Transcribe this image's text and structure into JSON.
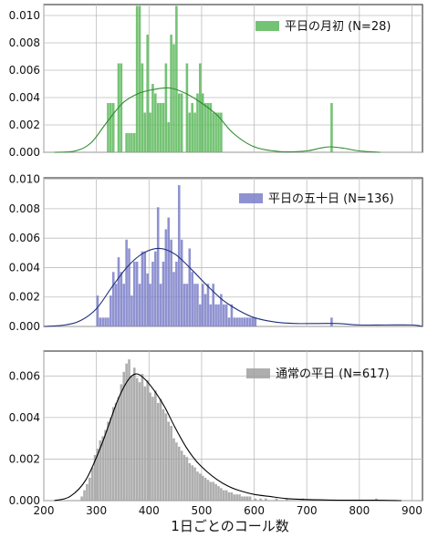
{
  "chart_data": [
    {
      "type": "histogram",
      "title": "",
      "legend": "平日の月初 (N=28)",
      "legend_position": "top-right",
      "color": "#5cb85c",
      "line_color": "#2e8b2e",
      "bin_width": 5,
      "xlim": [
        200,
        920
      ],
      "ylim": [
        0,
        0.0108
      ],
      "yticks": [
        "0.000",
        "0.002",
        "0.004",
        "0.006",
        "0.008",
        "0.010"
      ],
      "grid": true,
      "bars": [
        [
          320,
          0.0036
        ],
        [
          325,
          0.0036
        ],
        [
          330,
          0.0036
        ],
        [
          340,
          0.0065
        ],
        [
          345,
          0.0065
        ],
        [
          355,
          0.0014
        ],
        [
          360,
          0.0014
        ],
        [
          365,
          0.0014
        ],
        [
          370,
          0.0014
        ],
        [
          375,
          0.0107
        ],
        [
          380,
          0.0107
        ],
        [
          385,
          0.0065
        ],
        [
          390,
          0.0029
        ],
        [
          395,
          0.0086
        ],
        [
          400,
          0.0029
        ],
        [
          405,
          0.005
        ],
        [
          410,
          0.0043
        ],
        [
          415,
          0.0036
        ],
        [
          420,
          0.0036
        ],
        [
          425,
          0.0036
        ],
        [
          430,
          0.0065
        ],
        [
          435,
          0.0022
        ],
        [
          440,
          0.0086
        ],
        [
          445,
          0.0079
        ],
        [
          450,
          0.0107
        ],
        [
          455,
          0.0043
        ],
        [
          460,
          0.0043
        ],
        [
          470,
          0.0065
        ],
        [
          475,
          0.0029
        ],
        [
          480,
          0.0036
        ],
        [
          485,
          0.0029
        ],
        [
          490,
          0.0043
        ],
        [
          495,
          0.0065
        ],
        [
          500,
          0.0043
        ],
        [
          505,
          0.0036
        ],
        [
          510,
          0.0036
        ],
        [
          515,
          0.0036
        ],
        [
          520,
          0.0029
        ],
        [
          525,
          0.0029
        ],
        [
          530,
          0.0029
        ],
        [
          535,
          0.0029
        ],
        [
          745,
          0.0036
        ]
      ],
      "kde": [
        [
          220,
          0.0
        ],
        [
          260,
          0.0001
        ],
        [
          290,
          0.0007
        ],
        [
          320,
          0.0022
        ],
        [
          350,
          0.0036
        ],
        [
          380,
          0.0043
        ],
        [
          410,
          0.0046
        ],
        [
          440,
          0.0047
        ],
        [
          470,
          0.0043
        ],
        [
          500,
          0.0036
        ],
        [
          530,
          0.0027
        ],
        [
          560,
          0.0014
        ],
        [
          600,
          0.0004
        ],
        [
          650,
          5e-05
        ],
        [
          700,
          0.0001
        ],
        [
          725,
          0.0003
        ],
        [
          745,
          0.0004
        ],
        [
          770,
          0.0003
        ],
        [
          800,
          0.0001
        ],
        [
          840,
          0.0
        ]
      ]
    },
    {
      "type": "histogram",
      "title": "",
      "legend": "平日の五十日 (N=136)",
      "legend_position": "top-right",
      "color": "#7b7fc8",
      "line_color": "#1f2f7a",
      "bin_width": 5,
      "xlim": [
        200,
        920
      ],
      "ylim": [
        0,
        0.0101
      ],
      "yticks": [
        "0.000",
        "0.002",
        "0.004",
        "0.006",
        "0.008",
        "0.010"
      ],
      "grid": true,
      "bars": [
        [
          300,
          0.0021
        ],
        [
          305,
          0.0006
        ],
        [
          310,
          0.0006
        ],
        [
          315,
          0.0006
        ],
        [
          320,
          0.0006
        ],
        [
          325,
          0.0021
        ],
        [
          330,
          0.0037
        ],
        [
          335,
          0.0029
        ],
        [
          340,
          0.0047
        ],
        [
          345,
          0.0037
        ],
        [
          350,
          0.0029
        ],
        [
          355,
          0.0059
        ],
        [
          360,
          0.0053
        ],
        [
          365,
          0.0021
        ],
        [
          370,
          0.0044
        ],
        [
          375,
          0.0044
        ],
        [
          380,
          0.0029
        ],
        [
          385,
          0.0051
        ],
        [
          390,
          0.0051
        ],
        [
          395,
          0.0036
        ],
        [
          400,
          0.0029
        ],
        [
          405,
          0.0044
        ],
        [
          410,
          0.0051
        ],
        [
          415,
          0.0081
        ],
        [
          420,
          0.0029
        ],
        [
          425,
          0.0044
        ],
        [
          430,
          0.0066
        ],
        [
          435,
          0.0074
        ],
        [
          440,
          0.0059
        ],
        [
          445,
          0.0037
        ],
        [
          450,
          0.0044
        ],
        [
          455,
          0.0096
        ],
        [
          460,
          0.0059
        ],
        [
          465,
          0.0029
        ],
        [
          470,
          0.0029
        ],
        [
          475,
          0.0053
        ],
        [
          480,
          0.0037
        ],
        [
          485,
          0.0029
        ],
        [
          490,
          0.0029
        ],
        [
          495,
          0.0015
        ],
        [
          500,
          0.0029
        ],
        [
          505,
          0.0022
        ],
        [
          510,
          0.0029
        ],
        [
          515,
          0.0015
        ],
        [
          520,
          0.0029
        ],
        [
          525,
          0.0015
        ],
        [
          530,
          0.0015
        ],
        [
          535,
          0.0022
        ],
        [
          540,
          0.0015
        ],
        [
          545,
          0.0015
        ],
        [
          550,
          0.0006
        ],
        [
          555,
          0.0015
        ],
        [
          560,
          0.0006
        ],
        [
          565,
          0.0006
        ],
        [
          570,
          0.0006
        ],
        [
          575,
          0.0006
        ],
        [
          580,
          0.0006
        ],
        [
          585,
          0.0006
        ],
        [
          590,
          0.0006
        ],
        [
          595,
          0.0006
        ],
        [
          600,
          0.0006
        ],
        [
          745,
          0.0006
        ],
        [
          910,
          0.0001
        ]
      ],
      "kde": [
        [
          200,
          0.0
        ],
        [
          240,
          0.0001
        ],
        [
          270,
          0.0004
        ],
        [
          300,
          0.0012
        ],
        [
          330,
          0.0027
        ],
        [
          360,
          0.0041
        ],
        [
          390,
          0.005
        ],
        [
          420,
          0.0053
        ],
        [
          450,
          0.0049
        ],
        [
          480,
          0.0039
        ],
        [
          510,
          0.0028
        ],
        [
          540,
          0.0018
        ],
        [
          570,
          0.0011
        ],
        [
          600,
          0.0006
        ],
        [
          640,
          0.0003
        ],
        [
          680,
          0.0002
        ],
        [
          720,
          0.0002
        ],
        [
          760,
          0.0002
        ],
        [
          800,
          0.0001
        ],
        [
          850,
          0.0001
        ],
        [
          900,
          0.0001
        ],
        [
          920,
          0.0
        ]
      ]
    },
    {
      "type": "histogram",
      "title": "",
      "legend": "通常の平日 (N=617)",
      "legend_position": "top-right",
      "color": "#a0a0a0",
      "line_color": "#000000",
      "bin_width": 5,
      "xlim": [
        200,
        920
      ],
      "ylim": [
        0,
        0.0072
      ],
      "yticks": [
        "0.000",
        "0.002",
        "0.004",
        "0.006"
      ],
      "xticks": [
        "200",
        "300",
        "400",
        "500",
        "600",
        "700",
        "800",
        "900"
      ],
      "xlabel": "1日ごとのコール数",
      "grid": true,
      "bars": [
        [
          270,
          0.0002
        ],
        [
          275,
          0.0005
        ],
        [
          280,
          0.0008
        ],
        [
          285,
          0.0011
        ],
        [
          290,
          0.0016
        ],
        [
          295,
          0.0022
        ],
        [
          300,
          0.0025
        ],
        [
          305,
          0.0029
        ],
        [
          310,
          0.0031
        ],
        [
          315,
          0.0034
        ],
        [
          320,
          0.0038
        ],
        [
          325,
          0.004
        ],
        [
          330,
          0.0045
        ],
        [
          335,
          0.0047
        ],
        [
          340,
          0.005
        ],
        [
          345,
          0.0056
        ],
        [
          350,
          0.0062
        ],
        [
          355,
          0.0066
        ],
        [
          360,
          0.0068
        ],
        [
          365,
          0.006
        ],
        [
          370,
          0.0064
        ],
        [
          375,
          0.0059
        ],
        [
          380,
          0.0057
        ],
        [
          385,
          0.0061
        ],
        [
          390,
          0.0055
        ],
        [
          395,
          0.0058
        ],
        [
          400,
          0.0052
        ],
        [
          405,
          0.005
        ],
        [
          410,
          0.0053
        ],
        [
          415,
          0.0047
        ],
        [
          420,
          0.0049
        ],
        [
          425,
          0.0044
        ],
        [
          430,
          0.0042
        ],
        [
          435,
          0.0038
        ],
        [
          440,
          0.0036
        ],
        [
          445,
          0.003
        ],
        [
          450,
          0.0028
        ],
        [
          455,
          0.0026
        ],
        [
          460,
          0.0024
        ],
        [
          465,
          0.0022
        ],
        [
          470,
          0.0021
        ],
        [
          475,
          0.0018
        ],
        [
          480,
          0.0017
        ],
        [
          485,
          0.0016
        ],
        [
          490,
          0.0014
        ],
        [
          495,
          0.0013
        ],
        [
          500,
          0.0012
        ],
        [
          505,
          0.0011
        ],
        [
          510,
          0.001
        ],
        [
          515,
          0.0009
        ],
        [
          520,
          0.0009
        ],
        [
          525,
          0.0008
        ],
        [
          530,
          0.0007
        ],
        [
          535,
          0.0006
        ],
        [
          540,
          0.0005
        ],
        [
          545,
          0.0005
        ],
        [
          550,
          0.0004
        ],
        [
          555,
          0.0004
        ],
        [
          560,
          0.0003
        ],
        [
          565,
          0.0003
        ],
        [
          570,
          0.0003
        ],
        [
          575,
          0.0002
        ],
        [
          580,
          0.0002
        ],
        [
          585,
          0.0002
        ],
        [
          590,
          0.0002
        ],
        [
          600,
          0.0001
        ],
        [
          610,
          0.0001
        ],
        [
          620,
          0.0001
        ],
        [
          640,
          0.0001
        ],
        [
          660,
          0.0001
        ],
        [
          690,
          0.0001
        ],
        [
          830,
          0.0001
        ]
      ],
      "kde": [
        [
          220,
          0.0
        ],
        [
          250,
          0.0002
        ],
        [
          280,
          0.001
        ],
        [
          310,
          0.0027
        ],
        [
          340,
          0.0048
        ],
        [
          360,
          0.0058
        ],
        [
          375,
          0.0061
        ],
        [
          390,
          0.0059
        ],
        [
          410,
          0.0053
        ],
        [
          430,
          0.0045
        ],
        [
          450,
          0.0035
        ],
        [
          470,
          0.0026
        ],
        [
          490,
          0.0019
        ],
        [
          510,
          0.0014
        ],
        [
          530,
          0.001
        ],
        [
          550,
          0.0007
        ],
        [
          570,
          0.0005
        ],
        [
          600,
          0.0003
        ],
        [
          630,
          0.0002
        ],
        [
          660,
          0.0001
        ],
        [
          700,
          5e-05
        ],
        [
          760,
          2e-05
        ],
        [
          830,
          2e-05
        ],
        [
          880,
          0.0
        ]
      ]
    }
  ]
}
